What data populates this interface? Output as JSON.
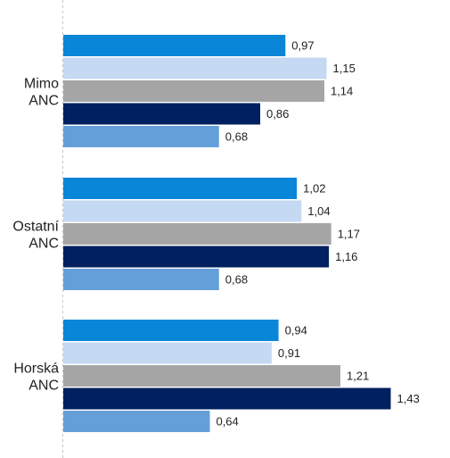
{
  "chart_data": {
    "type": "bar",
    "orientation": "horizontal",
    "categories": [
      [
        "Mimo",
        "ANC"
      ],
      [
        "Ostatní",
        "ANC"
      ],
      [
        "Horská",
        "ANC"
      ]
    ],
    "series": [
      {
        "color": "#0a86d8",
        "values": [
          0.97,
          1.02,
          0.94
        ],
        "labels": [
          "0,97",
          "1,02",
          "0,94"
        ]
      },
      {
        "color": "#c5d9f2",
        "values": [
          1.15,
          1.04,
          0.91
        ],
        "labels": [
          "1,15",
          "1,04",
          "0,91"
        ]
      },
      {
        "color": "#a5a5a5",
        "values": [
          1.14,
          1.17,
          1.21
        ],
        "labels": [
          "1,14",
          "1,17",
          "1,21"
        ]
      },
      {
        "color": "#00205f",
        "values": [
          0.86,
          1.16,
          1.43
        ],
        "labels": [
          "0,86",
          "1,16",
          "1,43"
        ]
      },
      {
        "color": "#659fd9",
        "values": [
          0.68,
          0.68,
          0.64
        ],
        "labels": [
          "0,68",
          "0,68",
          "0,64"
        ]
      }
    ],
    "xlim": [
      0,
      1.6
    ],
    "grid": false,
    "legend": "none"
  }
}
